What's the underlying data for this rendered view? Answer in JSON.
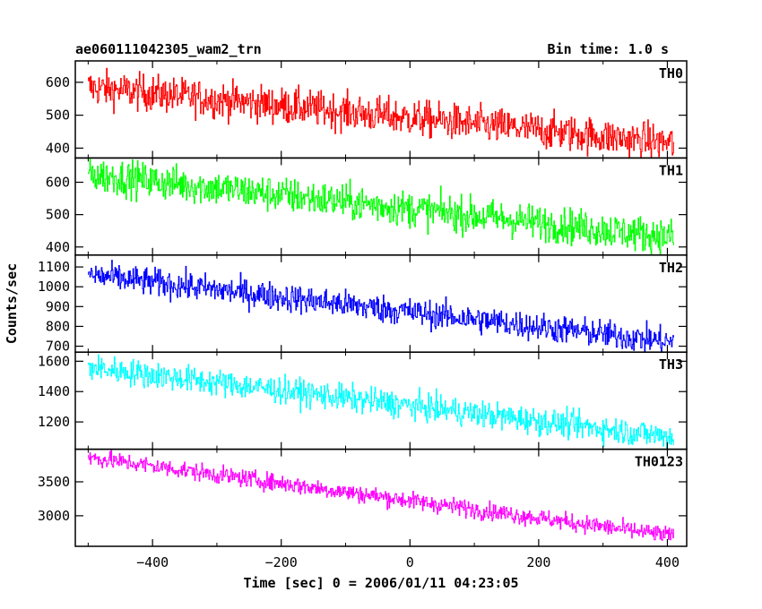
{
  "chart_data": {
    "type": "line",
    "title": "ae060111042305_wam2_trn",
    "subtitle": "Bin time: 1.0 s",
    "xlabel": "Time [sec] 0 = 2006/01/11 04:23:05",
    "ylabel": "Counts/sec",
    "xlim": [
      -520,
      430
    ],
    "x_ticks": [
      -400,
      -200,
      0,
      200,
      400
    ],
    "x_tick_labels": [
      "−400",
      "−200",
      "0",
      "200",
      "400"
    ],
    "x_range": [
      -500,
      410
    ],
    "grid": false,
    "panels": [
      {
        "name": "TH0",
        "color": "#ff0000",
        "ylim": [
          370,
          665
        ],
        "y_ticks": [
          400,
          500,
          600
        ],
        "y_tick_labels": [
          "400",
          "500",
          "600"
        ],
        "start_value": 585,
        "end_value": 415,
        "noise": 28
      },
      {
        "name": "TH1",
        "color": "#00ff00",
        "ylim": [
          375,
          675
        ],
        "y_ticks": [
          400,
          500,
          600
        ],
        "y_tick_labels": [
          "400",
          "500",
          "600"
        ],
        "start_value": 625,
        "end_value": 430,
        "noise": 28
      },
      {
        "name": "TH2",
        "color": "#0000ff",
        "ylim": [
          670,
          1160
        ],
        "y_ticks": [
          700,
          800,
          900,
          1000,
          1100
        ],
        "y_tick_labels": [
          "700",
          "800",
          "900",
          "1000",
          "1100"
        ],
        "start_value": 1060,
        "end_value": 720,
        "noise": 36
      },
      {
        "name": "TH3",
        "color": "#00ffff",
        "ylim": [
          1020,
          1660
        ],
        "y_ticks": [
          1200,
          1400,
          1600
        ],
        "y_tick_labels": [
          "1200",
          "1400",
          "1600"
        ],
        "start_value": 1560,
        "end_value": 1100,
        "noise": 45
      },
      {
        "name": "TH0123",
        "color": "#ff00ff",
        "ylim": [
          2550,
          3980
        ],
        "y_ticks": [
          3000,
          3500
        ],
        "y_tick_labels": [
          "3000",
          "3500"
        ],
        "start_value": 3860,
        "end_value": 2700,
        "noise": 65
      }
    ]
  }
}
